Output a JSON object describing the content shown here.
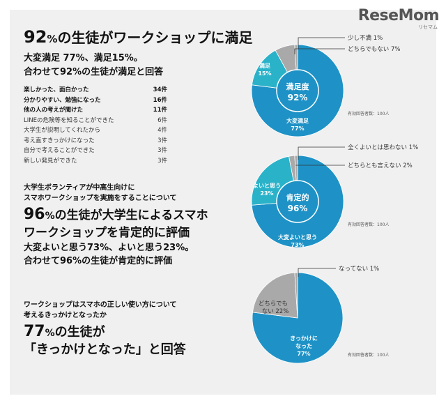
{
  "logo": {
    "text": "ReseMom",
    "sub": "リセマム"
  },
  "colors": {
    "blue": "#1e92c6",
    "teal": "#2ab2c9",
    "gray": "#a9a9a9",
    "panel": "#f0f0f0"
  },
  "section1": {
    "headline_num": "92",
    "headline_pct": "%",
    "headline_rest": "の生徒がワークショップに満足",
    "sub1": "大変満足 77%、満足15%。",
    "sub2": "合わせて92%の生徒が満足と回答",
    "reasons": [
      {
        "label": "楽しかった、面白かった",
        "count": "34件",
        "bold": true
      },
      {
        "label": "分かりやすい、勉強になった",
        "count": "16件",
        "bold": true
      },
      {
        "label": "他の人の考えが聞けた",
        "count": "11件",
        "bold": true
      },
      {
        "label": "LINEの危険等を知ることができた",
        "count": "6件",
        "bold": false
      },
      {
        "label": "大学生が説明してくれたから",
        "count": "4件",
        "bold": false
      },
      {
        "label": "考え直すきっかけになった",
        "count": "3件",
        "bold": false
      },
      {
        "label": "自分で考えることができた",
        "count": "3件",
        "bold": false
      },
      {
        "label": "新しい発見ができた",
        "count": "3件",
        "bold": false
      }
    ]
  },
  "section2": {
    "intro1": "大学生ボランティアが中高生向けに",
    "intro2": "スマホワークショップを実施をすることについて",
    "headline_num": "96",
    "headline_pct": "%",
    "headline_rest1": "の生徒が大学生によるスマホ",
    "headline_rest2": "ワークショップを肯定的に評価",
    "sub1": "大変よいと思う73%、よいと思う23%。",
    "sub2": "合わせて96%の生徒が肯定的に評価"
  },
  "section3": {
    "intro1": "ワークショップはスマホの正しい使い方について",
    "intro2": "考えるきっかけとなったか",
    "headline_num": "77",
    "headline_pct": "%",
    "headline_rest1": "の生徒が",
    "headline_rest2": "「きっかけとなった」と回答"
  },
  "chart_data": [
    {
      "type": "pie",
      "slices": [
        {
          "label": "大変満足 77%",
          "value": 77
        },
        {
          "label": "満足 15%",
          "value": 15
        },
        {
          "label": "どちらでもない 7%",
          "value": 7
        },
        {
          "label": "少し不満 1%",
          "value": 1
        }
      ],
      "center_label": "満足度",
      "center_value": "92%",
      "inner_labels": {
        "large": [
          "大変満足",
          "77%"
        ],
        "mid": [
          "満足",
          "15%"
        ]
      },
      "annotations": [
        "少し不満 1%",
        "どちらでもない 7%"
      ],
      "respondents": "有効回答者数：100人"
    },
    {
      "type": "pie",
      "slices": [
        {
          "label": "大変よいと思う 73%",
          "value": 73
        },
        {
          "label": "よいと思う 23%",
          "value": 23
        },
        {
          "label": "どちらとも言えない 2%",
          "value": 2
        },
        {
          "label": "全くよいとは思わない 1%",
          "value": 1
        }
      ],
      "center_label": "肯定的",
      "center_value": "96%",
      "inner_labels": {
        "large": [
          "大変よいと思う",
          "73%"
        ],
        "mid": [
          "よいと思う",
          "23%"
        ]
      },
      "annotations": [
        "全くよいとは思わない 1%",
        "どちらとも言えない 2%"
      ],
      "respondents": "有効回答者数：100人"
    },
    {
      "type": "pie",
      "slices": [
        {
          "label": "きっかけになった 77%",
          "value": 77
        },
        {
          "label": "どちらでもない 22%",
          "value": 22
        },
        {
          "label": "なってない 1%",
          "value": 1
        }
      ],
      "inner_labels": {
        "large": [
          "きっかけに",
          "なった",
          "77%"
        ],
        "mid": [
          "どちらでも",
          "ない 22%"
        ]
      },
      "annotations": [
        "なってない 1%"
      ],
      "respondents": "有効回答者数：100人"
    }
  ]
}
